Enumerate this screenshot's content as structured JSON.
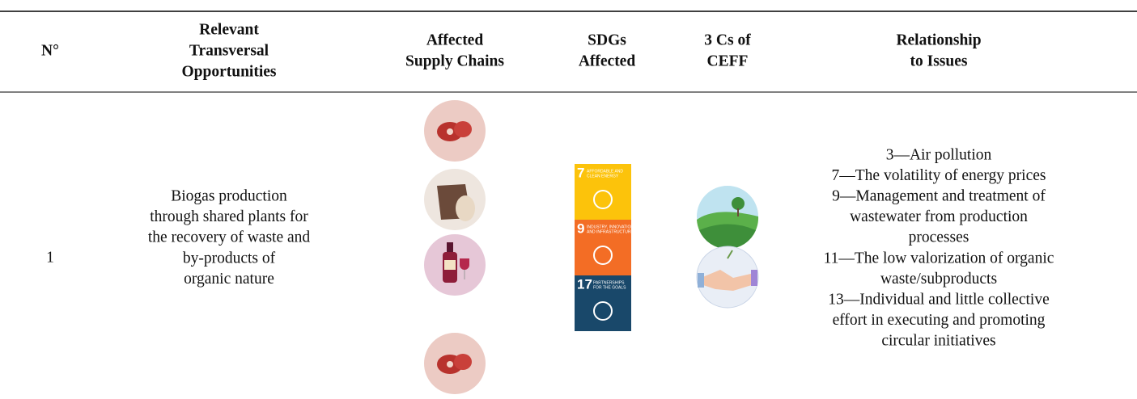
{
  "header": {
    "columns": [
      {
        "lines": [
          "N°"
        ]
      },
      {
        "lines": [
          "Relevant",
          "Transversal",
          "Opportunities"
        ]
      },
      {
        "lines": [
          "Affected",
          "Supply Chains"
        ]
      },
      {
        "lines": [
          "SDGs",
          "Affected"
        ]
      },
      {
        "lines": [
          "3 Cs of",
          "CEFF"
        ]
      },
      {
        "lines": [
          "Relationship",
          "to Issues"
        ]
      }
    ]
  },
  "rows": [
    {
      "number": "1",
      "opportunity": [
        "Biogas production",
        "through shared plants for",
        "the recovery of waste and",
        "by-products of",
        "organic nature"
      ],
      "sdgs": [
        {
          "number": "7",
          "lines": [
            "AFFORDABLE AND",
            "CLEAN ENERGY"
          ]
        },
        {
          "number": "9",
          "lines": [
            "INDUSTRY, INNOVATION",
            "AND INFRASTRUCTURE"
          ]
        },
        {
          "number": "17",
          "lines": [
            "PARTNERSHIPS",
            "FOR THE GOALS"
          ]
        }
      ],
      "issues": [
        "3—Air pollution",
        "7—The volatility of energy prices",
        "9—Management and treatment of",
        "wastewater from production",
        "processes",
        "11—The low valorization of organic",
        "waste/subproducts",
        "13—Individual and little collective",
        "effort in executing and promoting",
        "circular initiatives"
      ]
    }
  ]
}
